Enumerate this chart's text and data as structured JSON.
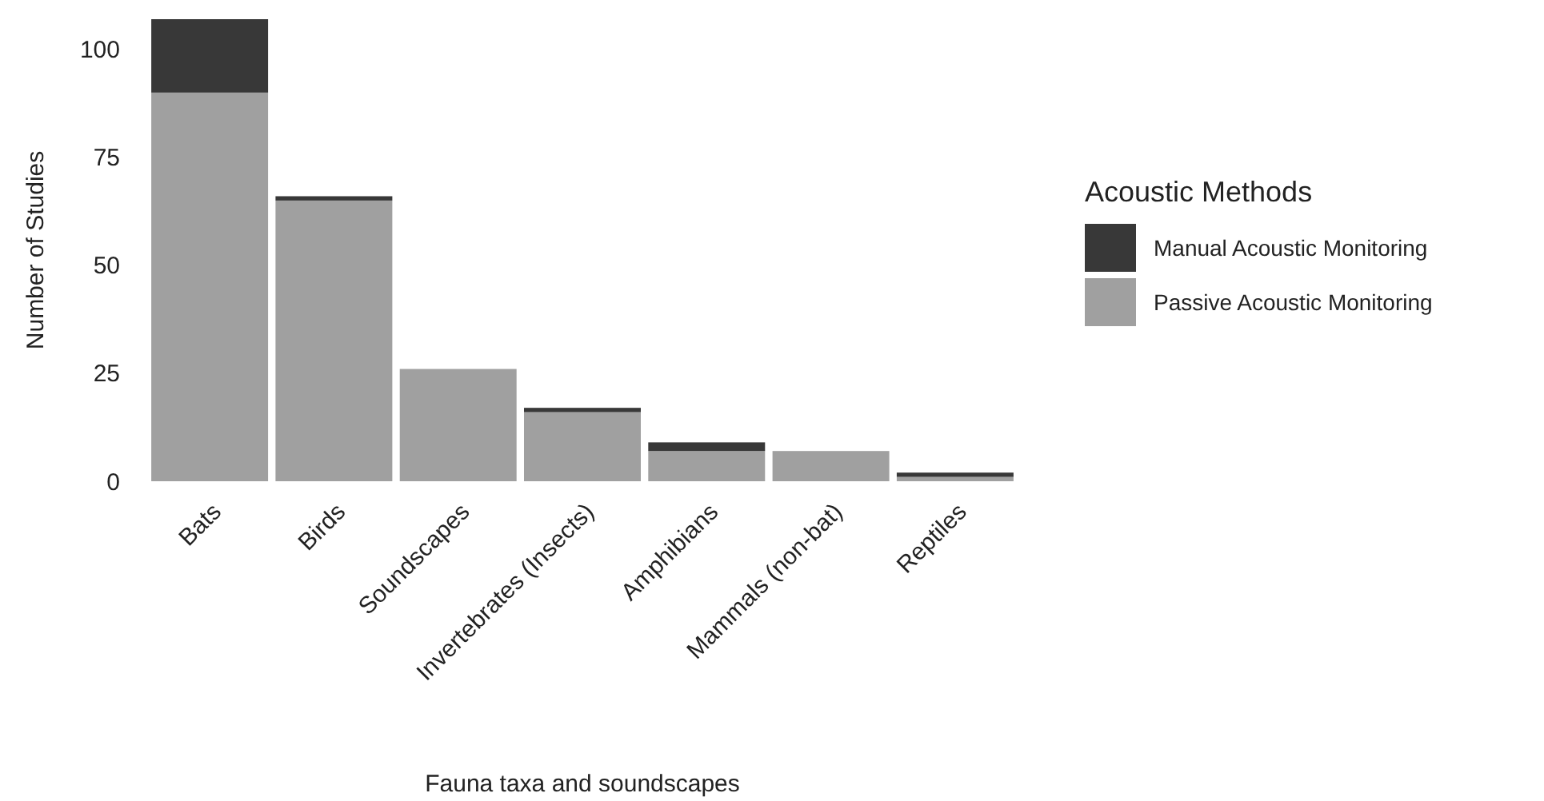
{
  "chart_data": {
    "type": "bar",
    "stacked": true,
    "xlabel": "Fauna taxa and soundscapes",
    "ylabel": "Number of Studies",
    "legend_title": "Acoustic Methods",
    "legend": "right",
    "categories": [
      "Bats",
      "Birds",
      "Soundscapes",
      "Invertebrates (Insects)",
      "Amphibians",
      "Mammals (non-bat)",
      "Reptiles"
    ],
    "series": [
      {
        "name": "Passive Acoustic Monitoring",
        "color": "#a0a0a0",
        "values": [
          90,
          65,
          26,
          16,
          7,
          7,
          1
        ]
      },
      {
        "name": "Manual Acoustic Monitoring",
        "color": "#383838",
        "values": [
          17,
          1,
          0,
          1,
          2,
          0,
          1
        ]
      }
    ],
    "ylim": [
      0,
      107
    ],
    "yticks": [
      0,
      25,
      50,
      75,
      100
    ],
    "grid": false
  }
}
